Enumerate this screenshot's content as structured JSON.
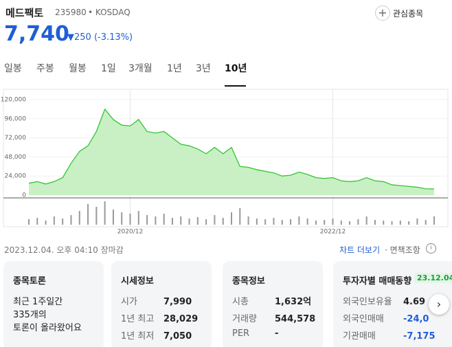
{
  "header": {
    "name": "메드팩토",
    "code": "235980",
    "market": "• KOSDAQ",
    "watch": "관심종목",
    "price": "7,740",
    "change": "▼250 (-3.13%)"
  },
  "tabs": {
    "items": [
      "일봉",
      "주봉",
      "월봉",
      "1일",
      "3개월",
      "1년",
      "3년",
      "10년"
    ],
    "selected": 7
  },
  "chart_data": {
    "type": "line",
    "color": "#33c433",
    "fill": "#c8f0c4",
    "grid": true,
    "categories": [
      null,
      null,
      null,
      null,
      null,
      null,
      null,
      null,
      null,
      null,
      null,
      null,
      "2020/12",
      null,
      null,
      null,
      null,
      null,
      null,
      null,
      null,
      null,
      null,
      null,
      null,
      null,
      null,
      null,
      null,
      null,
      null,
      null,
      null,
      null,
      null,
      null,
      "2022/12",
      null,
      null,
      null,
      null,
      null,
      null,
      null,
      null,
      null,
      null,
      null,
      null
    ],
    "values": [
      15000,
      17000,
      14000,
      17000,
      22000,
      40000,
      55000,
      62000,
      80000,
      108000,
      95000,
      88000,
      87000,
      95000,
      80000,
      78000,
      80000,
      72000,
      64000,
      62000,
      58000,
      52000,
      60000,
      52000,
      60000,
      36000,
      35000,
      32000,
      30000,
      28000,
      24000,
      25000,
      29000,
      26000,
      22000,
      21000,
      22000,
      18000,
      17000,
      18000,
      22000,
      18000,
      17000,
      13000,
      12000,
      11000,
      10000,
      8000,
      7740
    ],
    "volume": [
      8,
      10,
      6,
      12,
      9,
      14,
      20,
      30,
      26,
      34,
      22,
      18,
      16,
      20,
      14,
      12,
      16,
      10,
      12,
      9,
      11,
      8,
      14,
      10,
      18,
      24,
      12,
      9,
      8,
      10,
      7,
      8,
      12,
      9,
      6,
      7,
      9,
      6,
      5,
      8,
      12,
      7,
      6,
      5,
      6,
      5,
      9,
      7,
      12
    ],
    "ylim": [
      0,
      120000
    ],
    "yticks": [
      0,
      {
        "value": 24000,
        "label": "24,000"
      },
      {
        "value": 48000,
        "label": "48,000"
      },
      {
        "value": 72000,
        "label": "72,000"
      },
      {
        "value": 96000,
        "label": "96,000"
      },
      {
        "value": 120000,
        "label": "120,000"
      }
    ]
  },
  "footer": {
    "time": "2023.12.04. 오후 04:10 장마감",
    "more": "차트 더보기",
    "disclaimer": "· 면책조항"
  },
  "cards": [
    {
      "title": "종목토론",
      "lines": [
        "최근 1주일간",
        "335개의",
        "토론이 올라왔어요"
      ]
    },
    {
      "title": "시세정보",
      "rows": [
        [
          "시가",
          "7,990"
        ],
        [
          "1년 최고",
          "28,029"
        ],
        [
          "1년 최저",
          "7,050"
        ]
      ]
    },
    {
      "title": "종목정보",
      "rows": [
        [
          "시총",
          "1,632억"
        ],
        [
          "거래량",
          "544,578"
        ],
        [
          "PER",
          "-"
        ]
      ]
    },
    {
      "title": "투자자별 매매동향",
      "badge": "23.12.04",
      "rows": [
        [
          "외국인보유율",
          "4.69"
        ],
        [
          "외국인매매",
          "-24,0"
        ],
        [
          "기관매매",
          "-7,175"
        ]
      ]
    }
  ]
}
